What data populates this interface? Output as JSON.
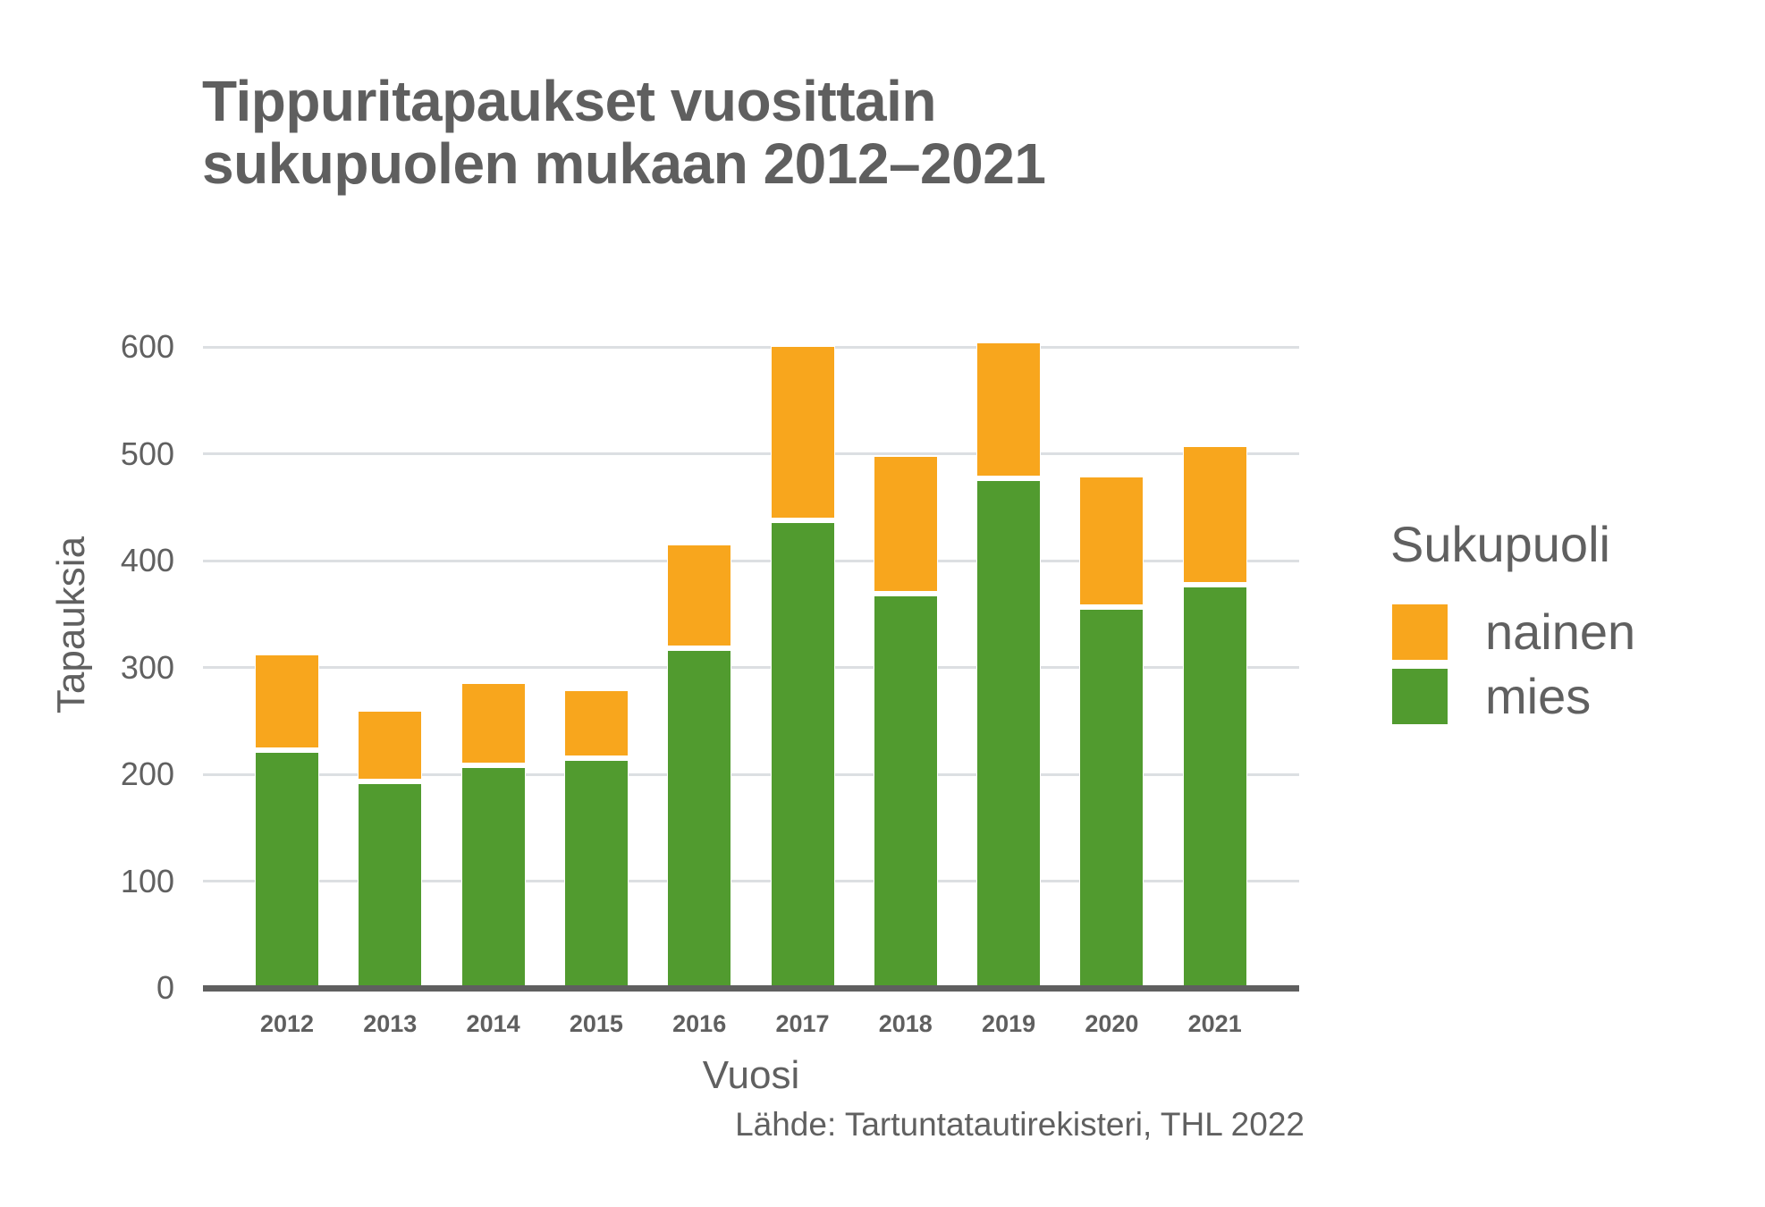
{
  "title": {
    "line1": "Tippuritapaukset vuosittain",
    "line2": "sukupuolen mukaan 2012–2021"
  },
  "axes": {
    "ylabel": "Tapauksia",
    "xlabel": "Vuosi",
    "yticks": [
      "0",
      "100",
      "200",
      "300",
      "400",
      "500",
      "600"
    ]
  },
  "legend": {
    "title": "Sukupuoli",
    "items": [
      {
        "label": "nainen",
        "color": "#f8a61d"
      },
      {
        "label": "mies",
        "color": "#519b2f"
      }
    ]
  },
  "source": "Lähde: Tartuntatautirekisteri, THL 2022",
  "colors": {
    "nainen": "#f8a61d",
    "mies": "#519b2f",
    "text": "#606060",
    "grid": "#dcdfe2",
    "axis": "#5f5f5f"
  },
  "chart_data": {
    "type": "bar",
    "stacked": true,
    "title": "Tippuritapaukset vuosittain sukupuolen mukaan 2012–2021",
    "xlabel": "Vuosi",
    "ylabel": "Tapauksia",
    "categories": [
      "2012",
      "2013",
      "2014",
      "2015",
      "2016",
      "2017",
      "2018",
      "2019",
      "2020",
      "2021"
    ],
    "series": [
      {
        "name": "mies",
        "color": "#519b2f",
        "values": [
          221,
          192,
          207,
          213,
          316,
          436,
          367,
          475,
          355,
          376
        ]
      },
      {
        "name": "nainen",
        "color": "#f8a61d",
        "values": [
          91,
          67,
          78,
          66,
          99,
          165,
          131,
          129,
          124,
          131
        ]
      }
    ],
    "totals": [
      312,
      259,
      285,
      279,
      415,
      601,
      498,
      604,
      479,
      507
    ],
    "ylim": [
      0,
      650
    ],
    "yticks": [
      0,
      100,
      200,
      300,
      400,
      500,
      600
    ],
    "grid": true,
    "legend_title": "Sukupuoli",
    "legend_position": "right",
    "annotations": [
      "Lähde: Tartuntatautirekisteri, THL 2022"
    ]
  }
}
